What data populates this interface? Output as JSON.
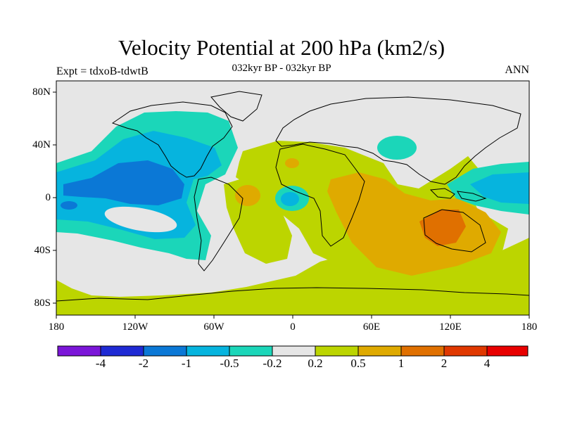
{
  "title": "Velocity Potential at 200 hPa (km2/s)",
  "subtitle": "032kyr BP - 032kyr BP",
  "left_label": "Expt = tdxoB-tdwtB",
  "right_label": "ANN",
  "lat_ticks": [
    "80N",
    "40N",
    "0",
    "40S",
    "80S"
  ],
  "lon_ticks": [
    "180",
    "120W",
    "60W",
    "0",
    "60E",
    "120E",
    "180"
  ],
  "colorbar": {
    "labels": [
      "-4",
      "-2",
      "-1",
      "-0.5",
      "-0.2",
      "0.2",
      "0.5",
      "1",
      "2",
      "4"
    ],
    "colors": [
      "#7b16d8",
      "#1f2ad4",
      "#0b78d6",
      "#06b4de",
      "#1bd6b9",
      "#e6e6e6",
      "#bcd500",
      "#dfaa00",
      "#e07000",
      "#e03800",
      "#e80000"
    ]
  },
  "palette": {
    "background": "#e6e6e6",
    "blue_mid": "#0b78d6",
    "blue_light": "#06b4de",
    "teal": "#1bd6b9",
    "green": "#bcd500",
    "gold": "#dfaa00",
    "orange": "#e07000"
  }
}
